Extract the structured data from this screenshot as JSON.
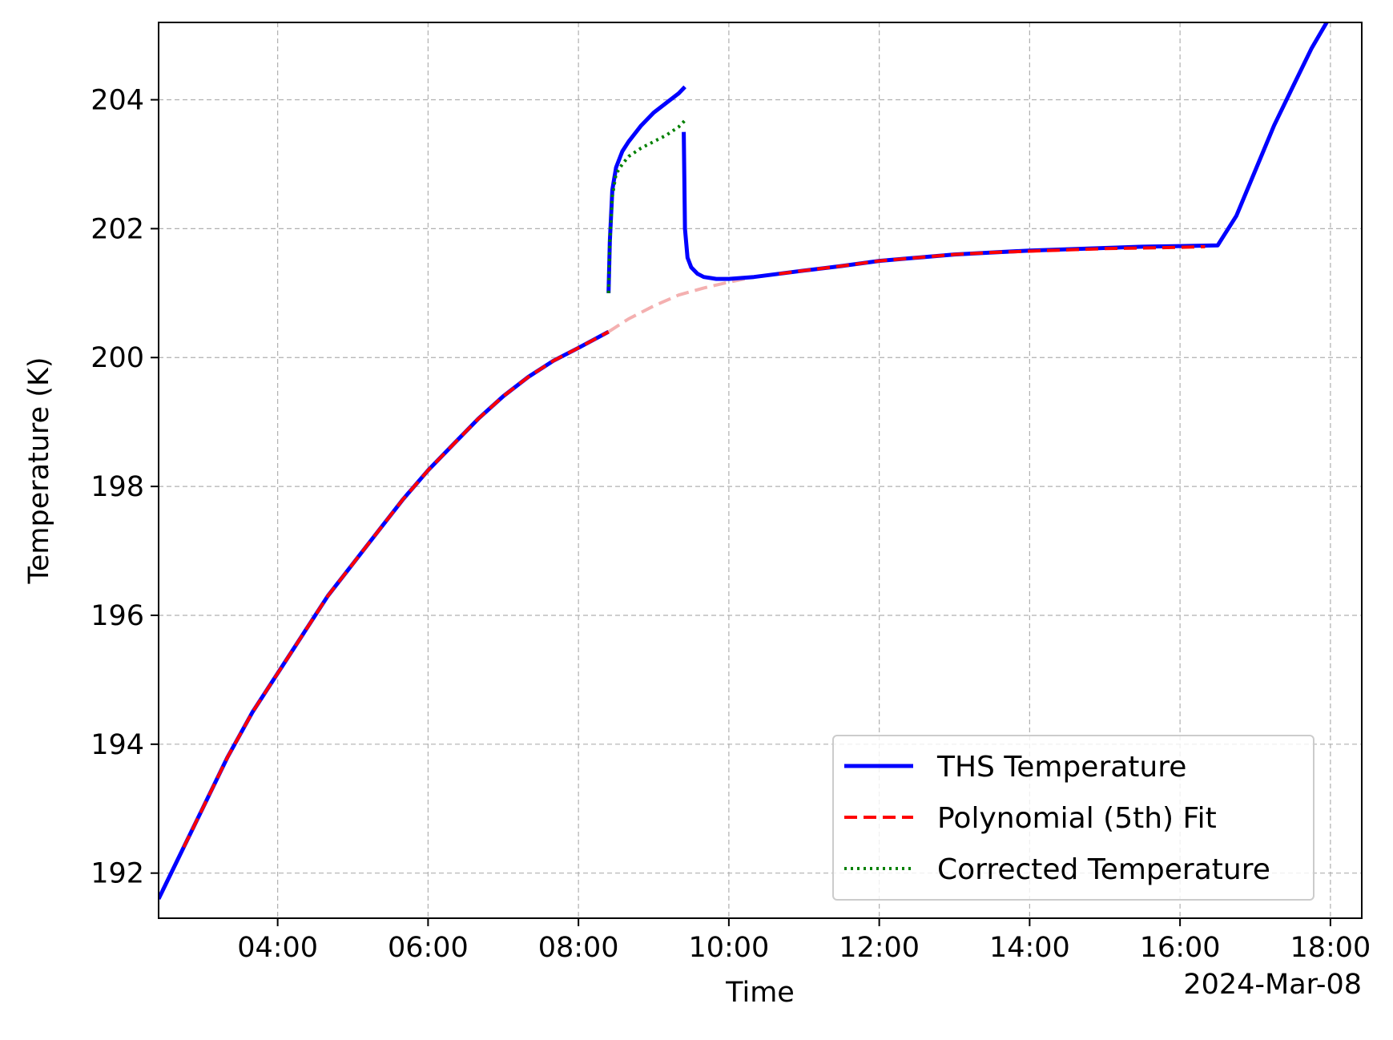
{
  "chart_data": {
    "type": "line",
    "title": "",
    "xlabel": "Time",
    "ylabel": "Temperature (K)",
    "date_label": "2024-Mar-08",
    "xlim": [
      "02:25",
      "18:25"
    ],
    "ylim": [
      191.3,
      205.2
    ],
    "x_ticks": [
      "04:00",
      "06:00",
      "08:00",
      "10:00",
      "12:00",
      "14:00",
      "16:00",
      "18:00"
    ],
    "y_ticks": [
      192,
      194,
      196,
      198,
      200,
      202,
      204
    ],
    "grid": true,
    "legend_position": "lower-right",
    "series": [
      {
        "name": "THS Temperature",
        "color": "#0000ff",
        "style": "solid",
        "segments": [
          {
            "x": [
              "02:25",
              "02:45",
              "03:00",
              "03:20",
              "03:40",
              "04:00",
              "04:20",
              "04:40",
              "05:00",
              "05:20",
              "05:40",
              "06:00",
              "06:20",
              "06:40",
              "07:00",
              "07:20",
              "07:40",
              "08:00",
              "08:24"
            ],
            "y": [
              191.6,
              192.4,
              193.0,
              193.8,
              194.5,
              195.1,
              195.7,
              196.3,
              196.8,
              197.3,
              197.8,
              198.25,
              198.65,
              199.05,
              199.4,
              199.7,
              199.95,
              200.15,
              200.4
            ]
          },
          {
            "x": [
              "08:24",
              "08:25",
              "08:27",
              "08:30",
              "08:35",
              "08:40",
              "08:50",
              "09:00",
              "09:10",
              "09:20",
              "09:25"
            ],
            "y": [
              201.0,
              201.8,
              202.6,
              202.95,
              203.2,
              203.35,
              203.6,
              203.8,
              203.95,
              204.1,
              204.2
            ]
          },
          {
            "x": [
              "09:24",
              "09:25",
              "09:27",
              "09:30",
              "09:35",
              "09:40",
              "09:50",
              "10:00",
              "10:20",
              "10:40",
              "11:00",
              "11:30",
              "12:00",
              "12:30",
              "13:00",
              "13:30",
              "14:00",
              "14:30",
              "15:00",
              "15:30",
              "16:00",
              "16:30",
              "16:45",
              "17:00",
              "17:15",
              "17:30",
              "17:45",
              "18:00"
            ],
            "y": [
              203.5,
              202.0,
              201.55,
              201.4,
              201.3,
              201.25,
              201.22,
              201.22,
              201.25,
              201.3,
              201.35,
              201.42,
              201.5,
              201.55,
              201.6,
              201.63,
              201.66,
              201.68,
              201.7,
              201.72,
              201.73,
              201.74,
              202.2,
              202.9,
              203.6,
              204.2,
              204.8,
              205.3
            ]
          }
        ]
      },
      {
        "name": "Polynomial (5th) Fit",
        "color": "#ff0000",
        "style": "dashed",
        "segments": [
          {
            "x": [
              "02:45",
              "03:00",
              "03:20",
              "03:40",
              "04:00",
              "04:20",
              "04:40",
              "05:00",
              "05:20",
              "05:40",
              "06:00",
              "06:20",
              "06:40",
              "07:00",
              "07:20",
              "07:40",
              "08:00",
              "08:24"
            ],
            "y": [
              192.4,
              193.0,
              193.8,
              194.5,
              195.1,
              195.7,
              196.3,
              196.8,
              197.3,
              197.8,
              198.25,
              198.65,
              199.05,
              199.4,
              199.7,
              199.95,
              200.15,
              200.4
            ]
          },
          {
            "x": [
              "10:40",
              "11:00",
              "11:30",
              "12:00",
              "12:30",
              "13:00",
              "13:30",
              "14:00",
              "14:30",
              "15:00",
              "15:30",
              "16:00",
              "16:20"
            ],
            "y": [
              201.3,
              201.35,
              201.42,
              201.5,
              201.55,
              201.6,
              201.63,
              201.65,
              201.67,
              201.69,
              201.7,
              201.71,
              201.72
            ]
          }
        ]
      },
      {
        "name": "Corrected Temperature",
        "color": "#008000",
        "style": "dotted",
        "segments": [
          {
            "x": [
              "08:24",
              "08:25",
              "08:27",
              "08:30",
              "08:35",
              "08:40",
              "08:50",
              "09:00",
              "09:10",
              "09:20",
              "09:25"
            ],
            "y": [
              201.0,
              201.8,
              202.5,
              202.85,
              203.0,
              203.12,
              203.25,
              203.35,
              203.45,
              203.58,
              203.68
            ]
          }
        ]
      }
    ],
    "extrapolated_fit": {
      "color": "#f4b0b0",
      "style": "dashed",
      "x": [
        "08:24",
        "08:40",
        "09:00",
        "09:20",
        "09:40",
        "10:00",
        "10:20",
        "10:40"
      ],
      "y": [
        200.4,
        200.6,
        200.8,
        200.97,
        201.08,
        201.17,
        201.25,
        201.3
      ]
    }
  }
}
